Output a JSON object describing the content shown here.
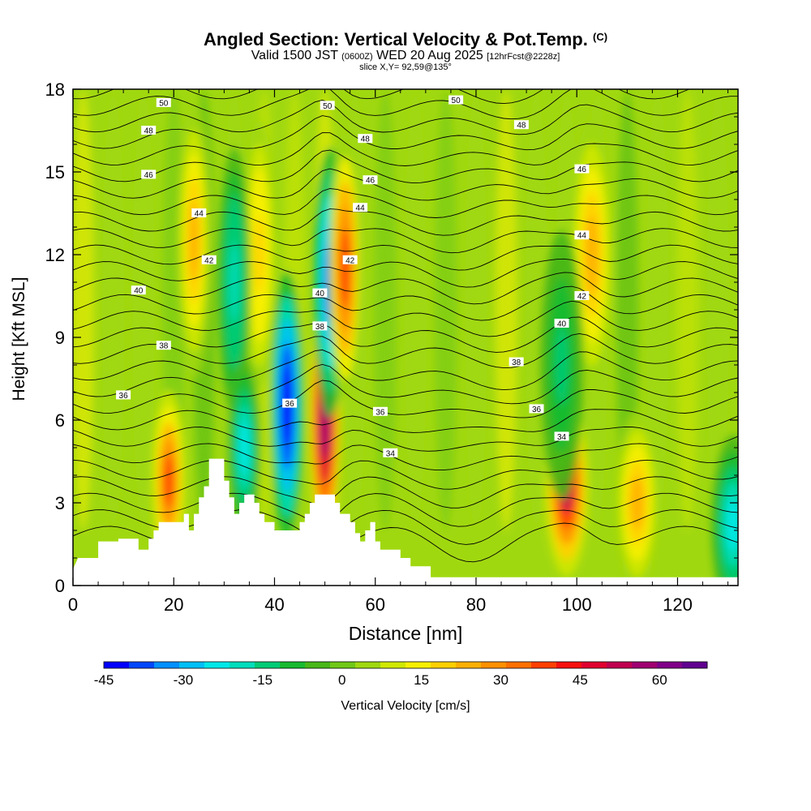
{
  "title": {
    "main": "Angled Section: Vertical Velocity & Pot.Temp.",
    "units_tag": "(C)",
    "valid_prefix": "Valid 1500 JST",
    "utc": "(0600Z)",
    "valid_suffix": "WED 20 Aug 2025",
    "forecast": "[12hrFcst@2228z]",
    "slice": "slice X,Y= 92,59@135°"
  },
  "chart_data": {
    "type": "heatmap",
    "title": "Angled Section: Vertical Velocity & Pot.Temp. (C)",
    "xlabel": "Distance [nm]",
    "ylabel": "Height [Kft MSL]",
    "xlim": [
      0,
      132
    ],
    "ylim": [
      0,
      18
    ],
    "xticks": [
      0,
      20,
      40,
      60,
      80,
      100,
      120
    ],
    "yticks": [
      0,
      3,
      6,
      9,
      12,
      15,
      18
    ],
    "colorbar": {
      "label": "Vertical Velocity [cm/s]",
      "min": -45,
      "max": 69,
      "step": 4.75,
      "ticks": [
        -45,
        -30,
        -15,
        0,
        15,
        30,
        45,
        60
      ],
      "colors": [
        "#0000ff",
        "#0048ff",
        "#0090ff",
        "#00c0f8",
        "#00e8e8",
        "#00ddbb",
        "#00cc77",
        "#18bb30",
        "#48b818",
        "#70c818",
        "#a0d810",
        "#d0e800",
        "#f8f000",
        "#ffd000",
        "#ffb000",
        "#ff9000",
        "#ff7000",
        "#ff4000",
        "#f81010",
        "#e00030",
        "#c00050",
        "#a00070",
        "#800088",
        "#600090"
      ]
    },
    "series": [
      {
        "name": "updraft",
        "x": 19,
        "z": 3.8,
        "w": 38
      },
      {
        "name": "updraft",
        "x": 24,
        "z": 12.5,
        "w": 22
      },
      {
        "name": "updraft",
        "x": 37,
        "z": 12,
        "w": 20
      },
      {
        "name": "downdraft",
        "x": 32,
        "z": 11,
        "w": -20
      },
      {
        "name": "downdraft",
        "x": 34,
        "z": 5,
        "w": -24
      },
      {
        "name": "downdraft",
        "x": 42.5,
        "z": 6.5,
        "w": -45
      },
      {
        "name": "updraft",
        "x": 50,
        "z": 6,
        "w": 58
      },
      {
        "name": "downdraft",
        "x": 51,
        "z": 11,
        "w": -38
      },
      {
        "name": "updraft",
        "x": 54,
        "z": 11.5,
        "w": 36
      },
      {
        "name": "updraft",
        "x": 98,
        "z": 3.6,
        "w": 50
      },
      {
        "name": "updraft",
        "x": 103,
        "z": 12,
        "w": 24
      },
      {
        "name": "downdraft",
        "x": 97,
        "z": 8,
        "w": -14
      },
      {
        "name": "updraft",
        "x": 112,
        "z": 3,
        "w": 25
      },
      {
        "name": "downdraft",
        "x": 131,
        "z": 2.2,
        "w": -26
      }
    ],
    "isentropes": {
      "label": "Potential Temperature (C)",
      "contour_labels": [
        {
          "text": "50",
          "x": 18,
          "z": 17.5
        },
        {
          "text": "50",
          "x": 50.5,
          "z": 17.4
        },
        {
          "text": "50",
          "x": 76,
          "z": 17.6
        },
        {
          "text": "48",
          "x": 15,
          "z": 16.5
        },
        {
          "text": "48",
          "x": 58,
          "z": 16.2
        },
        {
          "text": "48",
          "x": 89,
          "z": 16.7
        },
        {
          "text": "46",
          "x": 15,
          "z": 14.9
        },
        {
          "text": "46",
          "x": 59,
          "z": 14.7
        },
        {
          "text": "46",
          "x": 101,
          "z": 15.1
        },
        {
          "text": "44",
          "x": 25,
          "z": 13.5
        },
        {
          "text": "44",
          "x": 57,
          "z": 13.7
        },
        {
          "text": "44",
          "x": 101,
          "z": 12.7
        },
        {
          "text": "42",
          "x": 27,
          "z": 11.8
        },
        {
          "text": "42",
          "x": 55,
          "z": 11.8
        },
        {
          "text": "42",
          "x": 101,
          "z": 10.5
        },
        {
          "text": "40",
          "x": 13,
          "z": 10.7
        },
        {
          "text": "40",
          "x": 49,
          "z": 10.6
        },
        {
          "text": "40",
          "x": 97,
          "z": 9.5
        },
        {
          "text": "38",
          "x": 18,
          "z": 8.7
        },
        {
          "text": "38",
          "x": 49,
          "z": 9.4
        },
        {
          "text": "38",
          "x": 88,
          "z": 8.1
        },
        {
          "text": "36",
          "x": 10,
          "z": 6.9
        },
        {
          "text": "36",
          "x": 43,
          "z": 6.6
        },
        {
          "text": "36",
          "x": 61,
          "z": 6.3
        },
        {
          "text": "36",
          "x": 92,
          "z": 6.4
        },
        {
          "text": "34",
          "x": 63,
          "z": 4.8
        },
        {
          "text": "34",
          "x": 97,
          "z": 5.4
        }
      ]
    },
    "terrain": [
      [
        0,
        0.6
      ],
      [
        1,
        1
      ],
      [
        5,
        1
      ],
      [
        5,
        1.6
      ],
      [
        9,
        1.6
      ],
      [
        9,
        1.7
      ],
      [
        13,
        1.7
      ],
      [
        13,
        1.3
      ],
      [
        15,
        1.3
      ],
      [
        15,
        1.7
      ],
      [
        16,
        1.7
      ],
      [
        16,
        2
      ],
      [
        17,
        2
      ],
      [
        17,
        2.3
      ],
      [
        22,
        2.3
      ],
      [
        22,
        2.6
      ],
      [
        23,
        2.6
      ],
      [
        23,
        2
      ],
      [
        24,
        2
      ],
      [
        24,
        2.6
      ],
      [
        25,
        2.6
      ],
      [
        25,
        3.2
      ],
      [
        26,
        3.2
      ],
      [
        26,
        3.6
      ],
      [
        27,
        3.6
      ],
      [
        27,
        4.6
      ],
      [
        30,
        4.6
      ],
      [
        30,
        3.8
      ],
      [
        31,
        3.8
      ],
      [
        31,
        3.2
      ],
      [
        32,
        3.2
      ],
      [
        32,
        2.6
      ],
      [
        33,
        2.6
      ],
      [
        33,
        3
      ],
      [
        34,
        3
      ],
      [
        34,
        3.3
      ],
      [
        36,
        3.3
      ],
      [
        36,
        3
      ],
      [
        37,
        3
      ],
      [
        37,
        2.6
      ],
      [
        38,
        2.6
      ],
      [
        38,
        2.3
      ],
      [
        40,
        2.3
      ],
      [
        40,
        2
      ],
      [
        45,
        2
      ],
      [
        45,
        2.3
      ],
      [
        46,
        2.3
      ],
      [
        46,
        2.6
      ],
      [
        47,
        2.6
      ],
      [
        47,
        3
      ],
      [
        48,
        3
      ],
      [
        48,
        3.3
      ],
      [
        52,
        3.3
      ],
      [
        52,
        3
      ],
      [
        53,
        3
      ],
      [
        53,
        2.6
      ],
      [
        55,
        2.6
      ],
      [
        55,
        2.3
      ],
      [
        56,
        2.3
      ],
      [
        56,
        1.9
      ],
      [
        57,
        1.9
      ],
      [
        57,
        1.6
      ],
      [
        58,
        1.6
      ],
      [
        58,
        2
      ],
      [
        59,
        2
      ],
      [
        59,
        2.3
      ],
      [
        60,
        2.3
      ],
      [
        60,
        1.6
      ],
      [
        61,
        1.6
      ],
      [
        61,
        1.3
      ],
      [
        65,
        1.3
      ],
      [
        65,
        1
      ],
      [
        67,
        1
      ],
      [
        67,
        0.7
      ],
      [
        71,
        0.7
      ],
      [
        71,
        0.3
      ],
      [
        132,
        0.3
      ]
    ]
  }
}
